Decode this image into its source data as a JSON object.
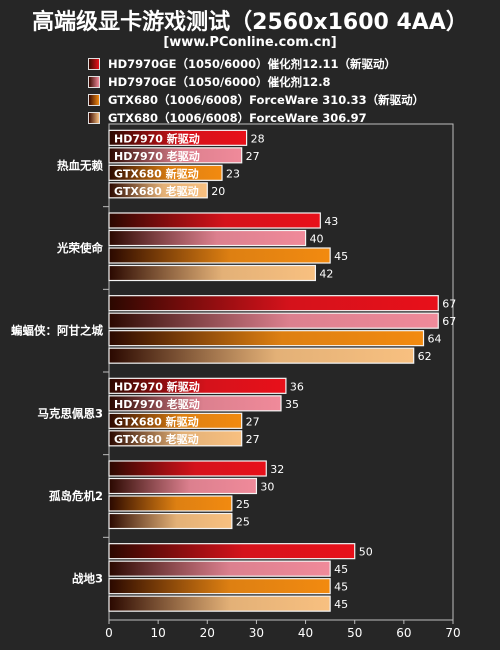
{
  "title": "高端级显卡游戏测试（2560x1600 4AA）",
  "subtitle": "[www.PConline.com.cn]",
  "chart_data": {
    "type": "bar",
    "orientation": "horizontal",
    "title": "高端级显卡游戏测试（2560x1600 4AA）",
    "categories": [
      "热血无赖",
      "光荣使命",
      "蝙蝠侠：阿甘之城",
      "马克思佩恩3",
      "孤岛危机2",
      "战地3"
    ],
    "series": [
      {
        "name": "HD7970GE（1050/6000）催化剂12.11（新驱动）",
        "bar_label": "HD7970 新驱动",
        "color": "#e8101a",
        "values": [
          28,
          43,
          67,
          36,
          32,
          50
        ]
      },
      {
        "name": "HD7970GE（1050/6000）催化剂12.8",
        "bar_label": "HD7970 老驱动",
        "color": "#f08a9a",
        "values": [
          27,
          40,
          67,
          35,
          30,
          45
        ]
      },
      {
        "name": "GTX680（1006/6008）ForceWare 310.33（新驱动）",
        "bar_label": "GTX680 新驱动",
        "color": "#f28a10",
        "values": [
          23,
          45,
          64,
          27,
          25,
          45
        ]
      },
      {
        "name": "GTX680（1006/6008）ForceWare 306.97",
        "bar_label": "GTX680 老驱动",
        "color": "#f8c080",
        "values": [
          20,
          42,
          62,
          27,
          25,
          45
        ]
      }
    ],
    "labeled_categories": [
      0,
      3
    ],
    "xlim": [
      0,
      70
    ],
    "xticks": [
      0,
      10,
      20,
      30,
      40,
      50,
      60,
      70
    ],
    "grid": false,
    "legend_position": "top"
  }
}
